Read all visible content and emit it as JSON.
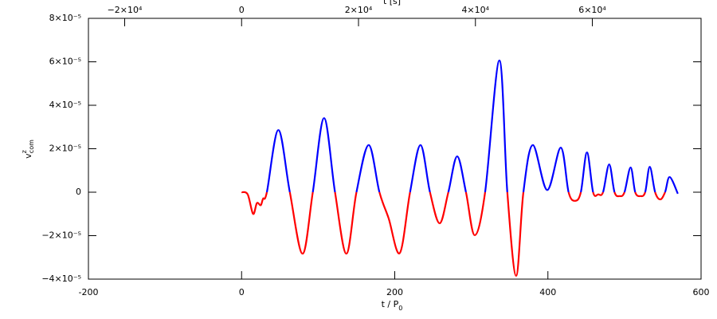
{
  "chart_data": {
    "type": "line",
    "x_label": {
      "base": "t / P",
      "sub": "0"
    },
    "y_label": {
      "base": "v",
      "sup": "z",
      "sub": "com"
    },
    "top_label": "t [s]",
    "xlim": [
      -200,
      600
    ],
    "xticks": [
      -200,
      0,
      200,
      400,
      600
    ],
    "top_xlim": [
      -26200,
      78600
    ],
    "top_xticks": [
      {
        "value": -20000,
        "label": "−2×10⁴"
      },
      0,
      {
        "value": 20000,
        "label": "2×10⁴"
      },
      {
        "value": 40000,
        "label": "4×10⁴"
      },
      {
        "value": 60000,
        "label": "6×10⁴"
      }
    ],
    "ylim": [
      -4e-05,
      8e-05
    ],
    "yticks": [
      {
        "value": -4e-05,
        "label": "−4×10⁻⁵"
      },
      {
        "value": -2e-05,
        "label": "−2×10⁻⁵"
      },
      0,
      {
        "value": 2e-05,
        "label": "2×10⁻⁵"
      },
      {
        "value": 4e-05,
        "label": "4×10⁻⁵"
      },
      {
        "value": 6e-05,
        "label": "6×10⁻⁵"
      },
      {
        "value": 8e-05,
        "label": "8×10⁻⁵"
      }
    ],
    "positive_color": "#0000ff",
    "negative_color": "#ff0000",
    "x": [
      0,
      8,
      15,
      20,
      25,
      28,
      33,
      48,
      63,
      79.6,
      93,
      107.7,
      122,
      136.8,
      150,
      166,
      180,
      192,
      206.6,
      220,
      233.6,
      246,
      258.6,
      270,
      281.5,
      293,
      304.4,
      318,
      336.6,
      347,
      358.5,
      368,
      380.3,
      399,
      416.8,
      427,
      435.5,
      443,
      451,
      459,
      465.7,
      472,
      480,
      487,
      493.8,
      500,
      508,
      514,
      520.8,
      527,
      533,
      540,
      546.7,
      553,
      559,
      569.7
    ],
    "values": [
      0,
      -1e-06,
      -1e-05,
      -5e-06,
      -6e-06,
      -3e-06,
      0,
      2.86e-05,
      0,
      -2.83e-05,
      0,
      3.41e-05,
      0,
      -2.83e-05,
      0,
      2.17e-05,
      0,
      -1.2e-05,
      -2.8e-05,
      0,
      2.17e-05,
      0,
      -1.43e-05,
      0,
      1.65e-05,
      0,
      -1.98e-05,
      0,
      6.06e-05,
      0,
      -3.85e-05,
      0,
      2.17e-05,
      1e-06,
      2.05e-05,
      0,
      -4e-06,
      0,
      1.83e-05,
      0,
      -1e-06,
      0,
      1.28e-05,
      0,
      -1.8e-06,
      0,
      1.14e-05,
      0,
      -1.8e-06,
      0,
      1.17e-05,
      0,
      -3.3e-06,
      0,
      7e-06,
      -7e-07
    ]
  }
}
